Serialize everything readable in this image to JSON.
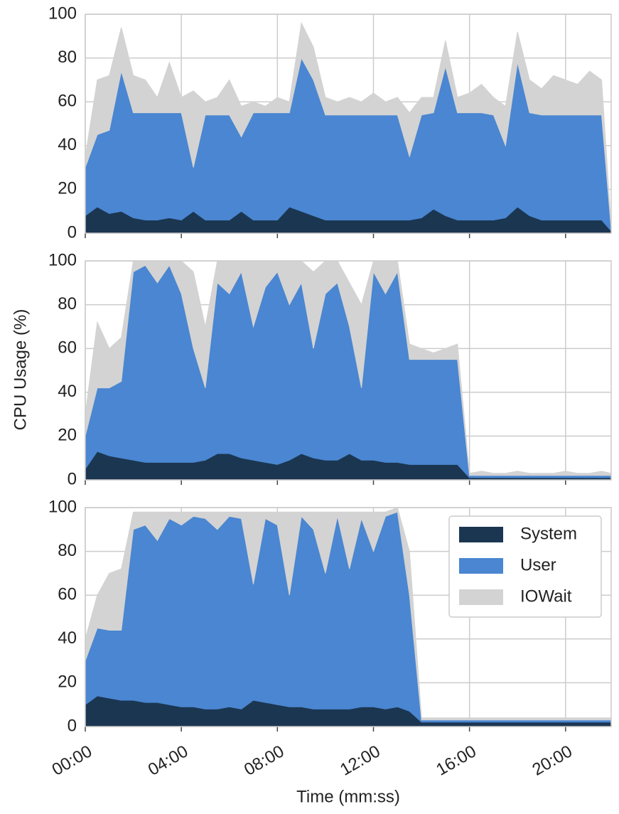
{
  "chart_data": {
    "type": "area",
    "stacked": true,
    "xlabel": "Time (mm:ss)",
    "ylabel": "CPU Usage (%)",
    "grid": true,
    "legend": "upper right",
    "legend_panel": 2,
    "x": [
      0,
      30,
      60,
      90,
      120,
      150,
      180,
      210,
      240,
      270,
      300,
      330,
      360,
      390,
      420,
      450,
      480,
      510,
      540,
      570,
      600,
      630,
      660,
      690,
      720,
      750,
      780,
      810,
      840,
      870,
      900,
      930,
      960,
      990,
      1020,
      1050,
      1080,
      1110,
      1140,
      1170,
      1200,
      1230,
      1260,
      1290,
      1314
    ],
    "xlim": [
      0,
      1314
    ],
    "xticks": [
      {
        "value": 0,
        "label": "00:00"
      },
      {
        "value": 240,
        "label": "04:00"
      },
      {
        "value": 480,
        "label": "08:00"
      },
      {
        "value": 720,
        "label": "12:00"
      },
      {
        "value": 960,
        "label": "16:00"
      },
      {
        "value": 1200,
        "label": "20:00"
      }
    ],
    "ylim": [
      0,
      100
    ],
    "yticks": [
      0,
      20,
      40,
      60,
      80,
      100
    ],
    "series": [
      {
        "name": "System",
        "color": "#1b3651"
      },
      {
        "name": "User",
        "color": "#4a86d1"
      },
      {
        "name": "IOWait",
        "color": "#d3d3d3"
      }
    ],
    "panels": [
      {
        "values": [
          [
            8,
            12,
            9,
            10,
            7,
            6,
            6,
            7,
            6,
            10,
            6,
            6,
            6,
            10,
            6,
            6,
            6,
            12,
            10,
            8,
            6,
            6,
            6,
            6,
            6,
            6,
            6,
            6,
            7,
            11,
            8,
            6,
            6,
            6,
            6,
            7,
            12,
            8,
            6,
            6,
            6,
            6,
            6,
            6,
            1
          ],
          [
            22,
            33,
            38,
            64,
            48,
            49,
            49,
            48,
            49,
            20,
            48,
            48,
            48,
            34,
            49,
            49,
            49,
            43,
            70,
            62,
            48,
            48,
            48,
            48,
            48,
            48,
            48,
            29,
            47,
            44,
            68,
            49,
            49,
            49,
            48,
            33,
            66,
            47,
            48,
            48,
            48,
            48,
            48,
            48,
            1
          ],
          [
            5,
            25,
            25,
            20,
            17,
            15,
            7,
            23,
            7,
            35,
            6,
            8,
            16,
            14,
            5,
            3,
            7,
            5,
            16,
            15,
            8,
            6,
            8,
            6,
            10,
            6,
            8,
            20,
            8,
            7,
            12,
            7,
            9,
            13,
            8,
            18,
            14,
            15,
            12,
            18,
            16,
            14,
            20,
            16,
            1
          ]
        ]
      },
      {
        "values": [
          [
            5,
            13,
            11,
            10,
            9,
            8,
            8,
            8,
            8,
            8,
            9,
            12,
            12,
            10,
            9,
            8,
            7,
            9,
            12,
            10,
            9,
            9,
            12,
            9,
            9,
            8,
            8,
            7,
            7,
            7,
            7,
            7,
            1,
            1,
            1,
            1,
            1,
            1,
            1,
            1,
            1,
            1,
            1,
            1,
            1
          ],
          [
            15,
            29,
            31,
            35,
            86,
            90,
            82,
            90,
            77,
            52,
            33,
            78,
            73,
            85,
            61,
            80,
            88,
            71,
            78,
            50,
            76,
            81,
            58,
            33,
            86,
            77,
            87,
            48,
            48,
            48,
            48,
            48,
            1,
            1,
            1,
            1,
            1,
            1,
            1,
            1,
            1,
            1,
            1,
            1,
            1
          ],
          [
            10,
            30,
            18,
            20,
            5,
            2,
            10,
            2,
            15,
            35,
            28,
            10,
            15,
            5,
            30,
            12,
            5,
            20,
            10,
            35,
            15,
            10,
            20,
            38,
            5,
            15,
            5,
            7,
            5,
            3,
            5,
            7,
            1,
            2,
            1,
            1,
            2,
            1,
            1,
            1,
            2,
            1,
            1,
            2,
            1
          ]
        ]
      },
      {
        "values": [
          [
            10,
            14,
            13,
            12,
            12,
            11,
            11,
            10,
            9,
            9,
            8,
            8,
            9,
            8,
            12,
            11,
            10,
            9,
            9,
            8,
            8,
            8,
            8,
            9,
            9,
            8,
            9,
            7,
            2,
            2,
            2,
            2,
            2,
            2,
            2,
            2,
            2,
            2,
            2,
            2,
            2,
            2,
            2,
            2,
            2
          ],
          [
            20,
            31,
            31,
            32,
            78,
            81,
            74,
            85,
            83,
            87,
            87,
            82,
            87,
            87,
            53,
            84,
            82,
            51,
            87,
            82,
            62,
            88,
            64,
            86,
            71,
            88,
            89,
            53,
            1,
            1,
            1,
            1,
            1,
            1,
            1,
            1,
            1,
            1,
            1,
            1,
            1,
            1,
            1,
            1,
            1
          ],
          [
            10,
            15,
            26,
            28,
            8,
            6,
            13,
            3,
            6,
            2,
            3,
            8,
            2,
            3,
            33,
            3,
            6,
            38,
            2,
            8,
            28,
            2,
            26,
            3,
            18,
            2,
            2,
            20,
            1,
            1,
            1,
            1,
            1,
            1,
            1,
            1,
            1,
            1,
            1,
            1,
            1,
            1,
            1,
            1,
            1
          ]
        ]
      }
    ]
  }
}
